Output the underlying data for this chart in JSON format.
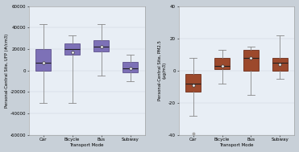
{
  "left_ylabel": "Personal-Central Site, UFP (#/cm3)",
  "left_xlabel": "Transport Mode",
  "right_ylabel": "Personal-Central Site, PM2.5\n(μg/m3)",
  "right_xlabel": "Transport Mode",
  "left_ylim": [
    -60000,
    60000
  ],
  "left_yticks": [
    -60000,
    -40000,
    -20000,
    0,
    20000,
    40000,
    60000
  ],
  "right_ylim": [
    -40,
    40
  ],
  "right_yticks": [
    -40,
    -20,
    0,
    20,
    40
  ],
  "categories": [
    "Car",
    "Bicycle",
    "Bus",
    "Subway"
  ],
  "left_box_color": "#6655AA",
  "left_box_edge": "#4A3B7A",
  "right_box_color": "#8B2500",
  "right_box_edge": "#5A1500",
  "whisker_color": "#888888",
  "median_color": "#222222",
  "axes_bg": "#e8eef5",
  "fig_bg_color": "#c8d0d8",
  "left_boxes": [
    {
      "whislo": -30000,
      "q1": 0,
      "med": 7000,
      "q3": 20000,
      "whishi": 43000,
      "mean": 7000,
      "fliers": []
    },
    {
      "whislo": -30000,
      "q1": 15000,
      "med": 20000,
      "q3": 25000,
      "whishi": 33000,
      "mean": 17000,
      "fliers": []
    },
    {
      "whislo": -5000,
      "q1": 18000,
      "med": 22000,
      "q3": 28000,
      "whishi": 43000,
      "mean": 22000,
      "fliers": []
    },
    {
      "whislo": -10000,
      "q1": -2000,
      "med": 2000,
      "q3": 8000,
      "whishi": 15000,
      "mean": 2000,
      "fliers": []
    }
  ],
  "right_boxes": [
    {
      "whislo": -28,
      "q1": -13,
      "med": -8,
      "q3": -2,
      "whishi": 8,
      "mean": -9,
      "fliers": [
        -39
      ]
    },
    {
      "whislo": -8,
      "q1": 1,
      "med": 3,
      "q3": 8,
      "whishi": 13,
      "mean": 3,
      "fliers": []
    },
    {
      "whislo": -15,
      "q1": 0,
      "med": 8,
      "q3": 13,
      "whishi": 15,
      "mean": 8,
      "fliers": []
    },
    {
      "whislo": -5,
      "q1": 0,
      "med": 5,
      "q3": 8,
      "whishi": 22,
      "mean": 4,
      "fliers": []
    }
  ]
}
